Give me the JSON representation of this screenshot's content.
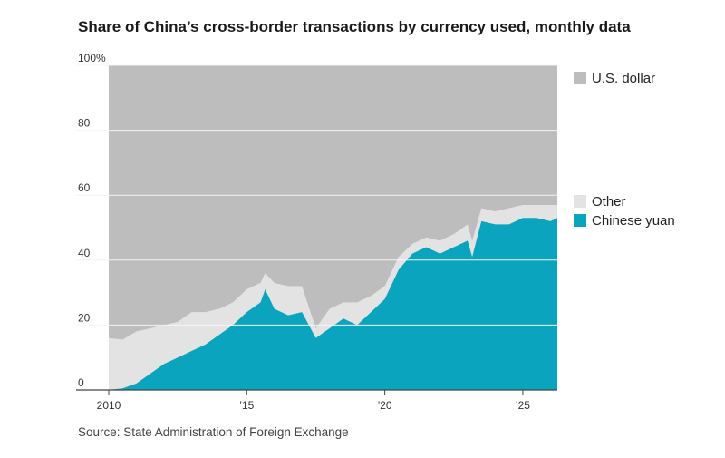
{
  "title": "Share of China’s cross-border transactions by currency used, monthly data",
  "source": "Source: State Administration of Foreign Exchange",
  "colors": {
    "usd": "#bdbdbd",
    "other": "#e3e3e3",
    "yuan": "#0aa4bf"
  },
  "chart_data": {
    "type": "area",
    "stacking": "stacked to 100%",
    "x_ticks": [
      "2010",
      "’15",
      "’20",
      "’25"
    ],
    "y_ticks": [
      "0",
      "20",
      "40",
      "60",
      "80",
      "100%"
    ],
    "ylim": [
      0,
      100
    ],
    "xlim": [
      "2010-01",
      "2026-04"
    ],
    "legend": [
      "U.S. dollar",
      "Other",
      "Chinese yuan"
    ],
    "legend_placement": "right",
    "grid": "horizontal",
    "x": [
      "2010-01",
      "2010-07",
      "2011-01",
      "2011-07",
      "2012-01",
      "2012-07",
      "2013-01",
      "2013-07",
      "2014-01",
      "2014-07",
      "2015-01",
      "2015-07",
      "2015-09",
      "2016-01",
      "2016-07",
      "2017-01",
      "2017-07",
      "2018-01",
      "2018-07",
      "2019-01",
      "2019-07",
      "2020-01",
      "2020-07",
      "2021-01",
      "2021-07",
      "2022-01",
      "2022-07",
      "2023-01",
      "2023-03",
      "2023-07",
      "2024-01",
      "2024-07",
      "2025-01",
      "2025-07",
      "2026-01",
      "2026-04"
    ],
    "series": [
      {
        "name": "Chinese yuan",
        "values": [
          0,
          0.5,
          2,
          5,
          8,
          10,
          12,
          14,
          17,
          20,
          24,
          27,
          31,
          25,
          23,
          24,
          16,
          19,
          22,
          20,
          24,
          28,
          37,
          42,
          44,
          42,
          44,
          46,
          41,
          52,
          51,
          51,
          53,
          53,
          52,
          53
        ]
      },
      {
        "name": "Other",
        "values": [
          16,
          15,
          16,
          14,
          12,
          11,
          12,
          10,
          8,
          7,
          7,
          6,
          5,
          8,
          9,
          8,
          3,
          6,
          5,
          7,
          5,
          4,
          4,
          3,
          3,
          4,
          4,
          5,
          5,
          4,
          4,
          5,
          4,
          4,
          5,
          4
        ]
      },
      {
        "name": "U.S. dollar",
        "values": [
          84,
          84.5,
          82,
          81,
          80,
          79,
          76,
          76,
          75,
          73,
          69,
          67,
          64,
          67,
          68,
          68,
          81,
          75,
          73,
          73,
          71,
          68,
          59,
          55,
          53,
          54,
          52,
          49,
          54,
          44,
          45,
          44,
          43,
          43,
          43,
          43
        ]
      }
    ]
  }
}
